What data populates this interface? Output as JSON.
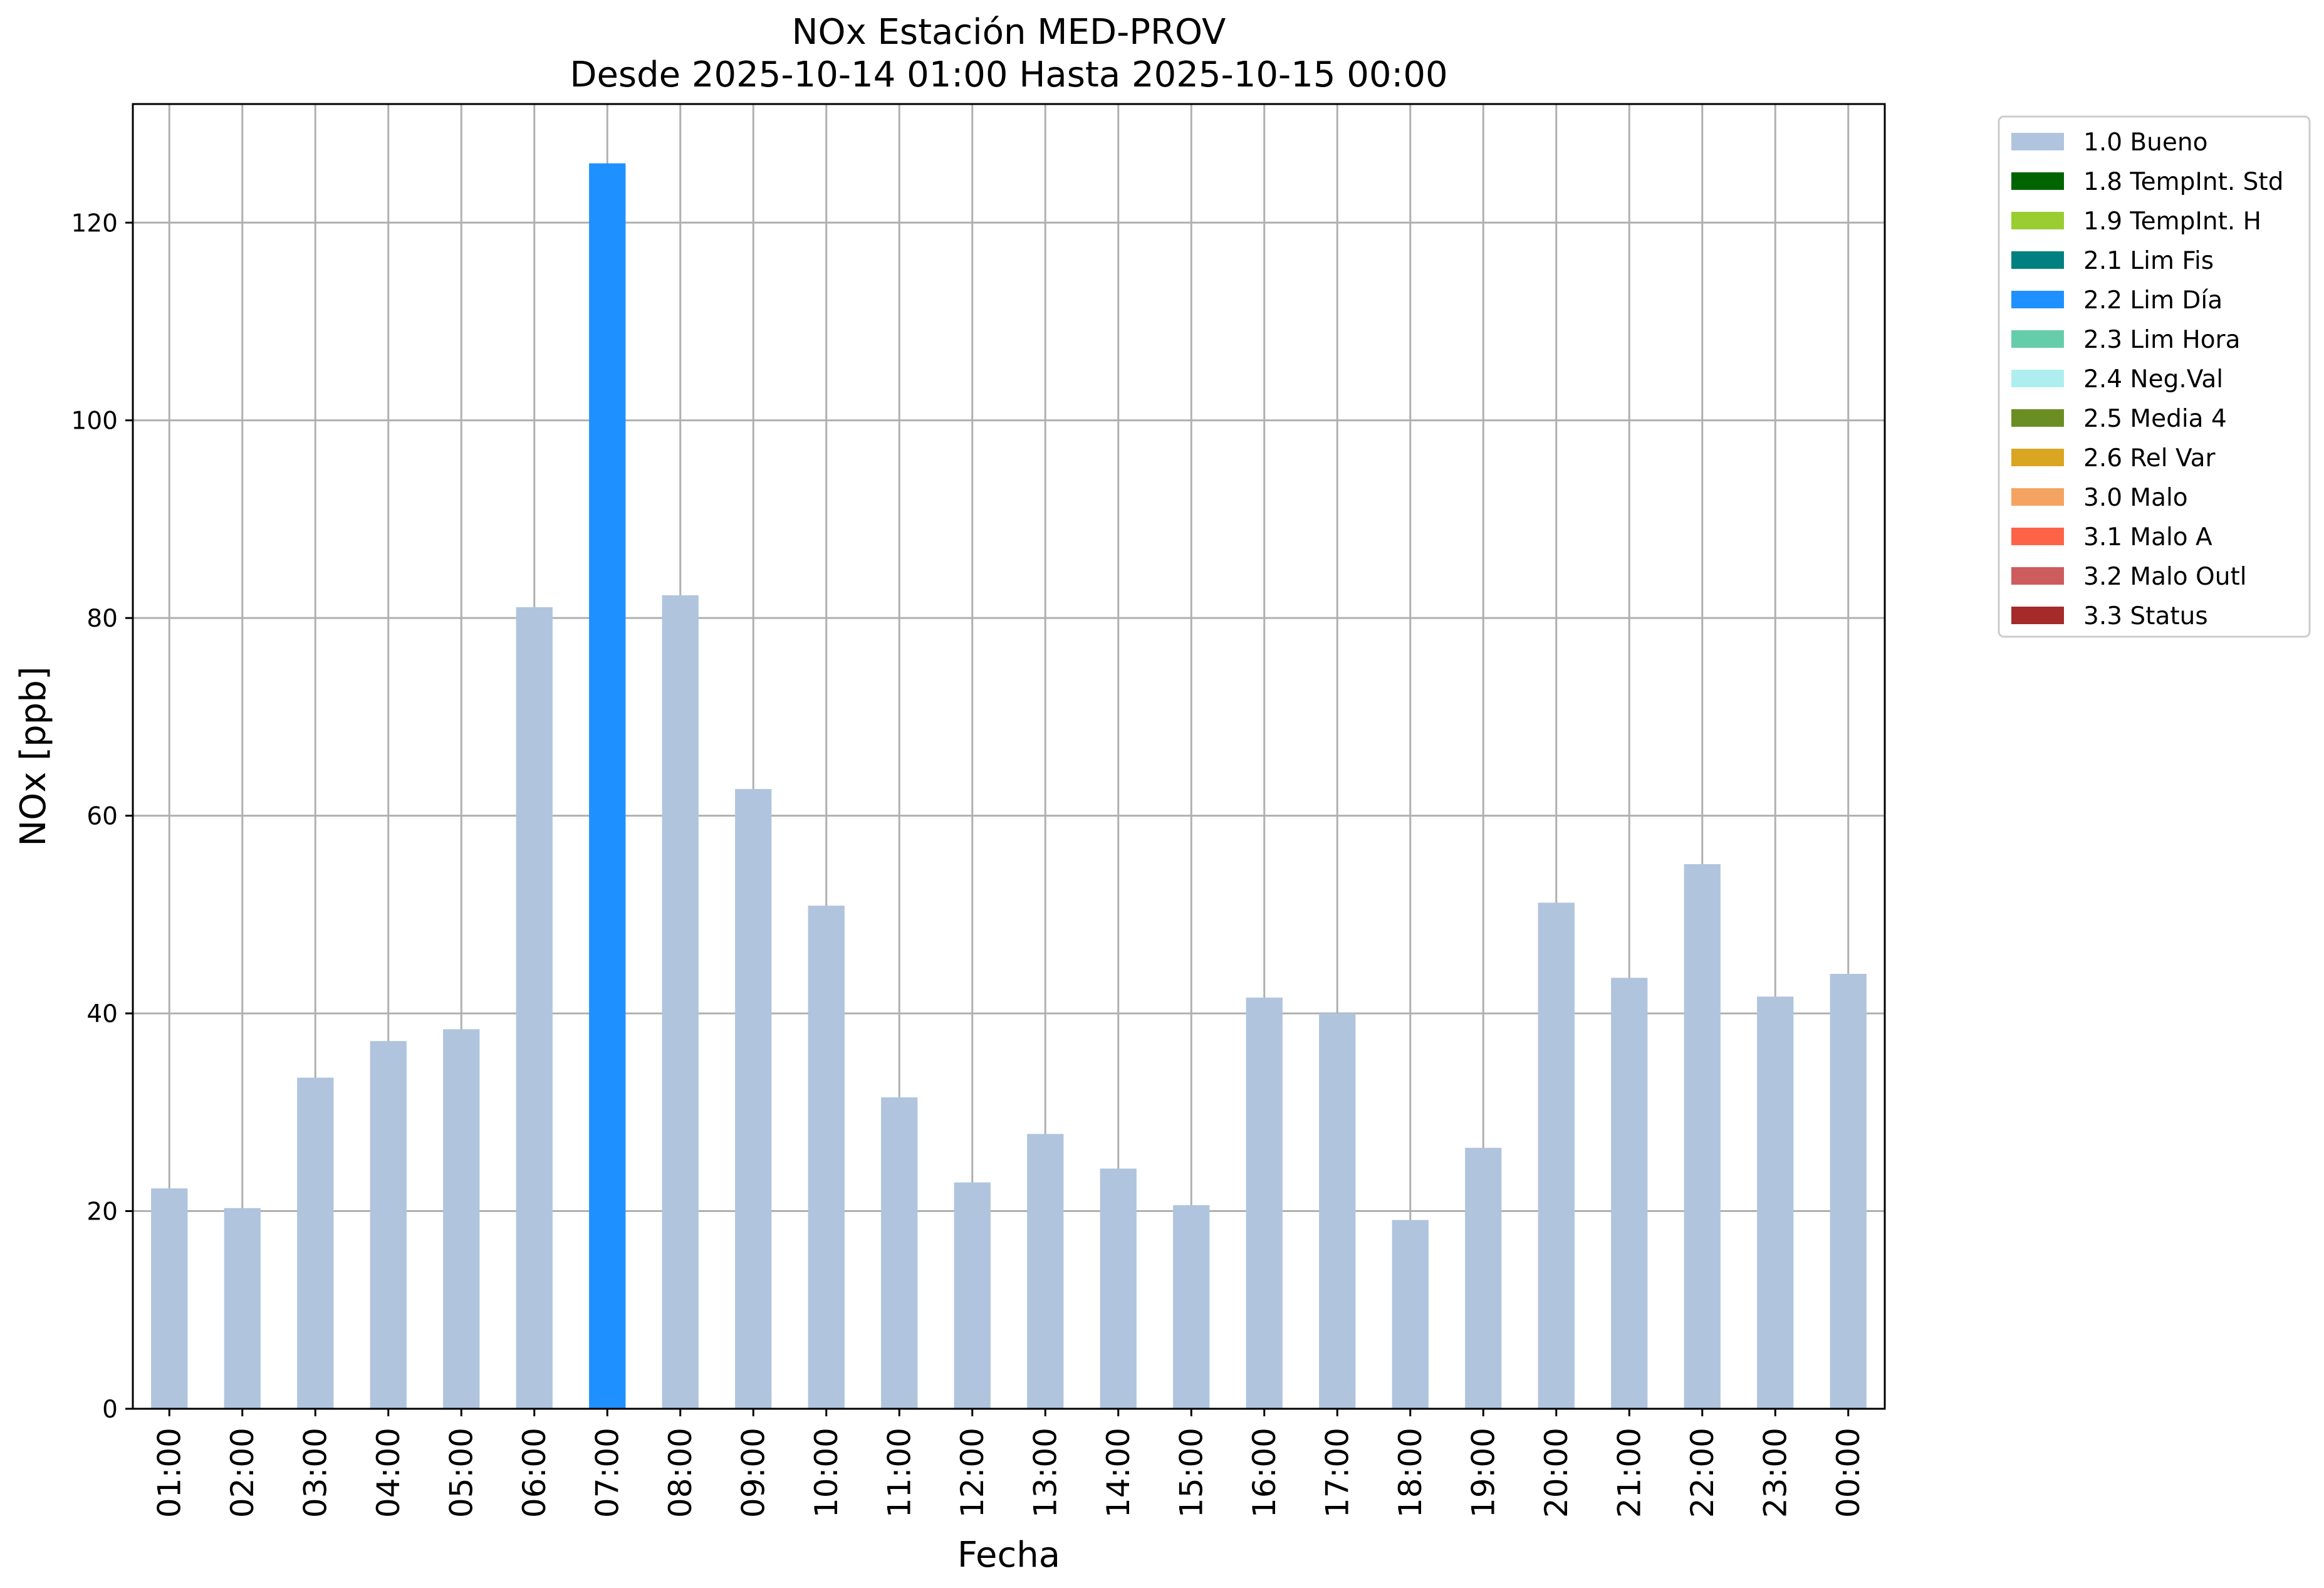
{
  "chart_data": {
    "type": "bar",
    "title": "NOx Estación MED-PROV",
    "subtitle": "Desde 2025-10-14 01:00 Hasta 2025-10-15 00:00",
    "xlabel": "Fecha",
    "ylabel": "NOx [ppb]",
    "ylim": [
      0,
      132
    ],
    "yticks": [
      "0",
      "20",
      "40",
      "60",
      "80",
      "100",
      "120"
    ],
    "grid": true,
    "legend_position": "outside-top-right",
    "categories": [
      "01:00",
      "02:00",
      "03:00",
      "04:00",
      "05:00",
      "06:00",
      "07:00",
      "08:00",
      "09:00",
      "10:00",
      "11:00",
      "12:00",
      "13:00",
      "14:00",
      "15:00",
      "16:00",
      "17:00",
      "18:00",
      "19:00",
      "20:00",
      "21:00",
      "22:00",
      "23:00",
      "00:00"
    ],
    "values": [
      22.3,
      20.3,
      33.5,
      37.2,
      38.4,
      81.1,
      126.0,
      82.3,
      62.7,
      50.9,
      31.5,
      22.9,
      27.8,
      24.3,
      20.6,
      41.6,
      40.0,
      19.1,
      26.4,
      51.2,
      43.6,
      55.1,
      41.7,
      44.0
    ],
    "flags": [
      "1.0 Bueno",
      "1.0 Bueno",
      "1.0 Bueno",
      "1.0 Bueno",
      "1.0 Bueno",
      "1.0 Bueno",
      "2.2 Lim Día",
      "1.0 Bueno",
      "1.0 Bueno",
      "1.0 Bueno",
      "1.0 Bueno",
      "1.0 Bueno",
      "1.0 Bueno",
      "1.0 Bueno",
      "1.0 Bueno",
      "1.0 Bueno",
      "1.0 Bueno",
      "1.0 Bueno",
      "1.0 Bueno",
      "1.0 Bueno",
      "1.0 Bueno",
      "1.0 Bueno",
      "1.0 Bueno",
      "1.0 Bueno"
    ],
    "legend": [
      {
        "label": "1.0 Bueno",
        "color": "#b0c4de"
      },
      {
        "label": "1.8 TempInt. Std",
        "color": "#006400"
      },
      {
        "label": "1.9 TempInt. H",
        "color": "#9acd32"
      },
      {
        "label": "2.1 Lim Fis",
        "color": "#008080"
      },
      {
        "label": "2.2 Lim Día",
        "color": "#1e90ff"
      },
      {
        "label": "2.3 Lim Hora",
        "color": "#66cdaa"
      },
      {
        "label": "2.4 Neg.Val",
        "color": "#afeeee"
      },
      {
        "label": "2.5 Media 4",
        "color": "#6b8e23"
      },
      {
        "label": "2.6 Rel Var",
        "color": "#daa520"
      },
      {
        "label": "3.0 Malo",
        "color": "#f4a460"
      },
      {
        "label": "3.1 Malo A",
        "color": "#ff6347"
      },
      {
        "label": "3.2 Malo Outl",
        "color": "#cd5c5c"
      },
      {
        "label": "3.3 Status",
        "color": "#a52a2a"
      }
    ]
  }
}
